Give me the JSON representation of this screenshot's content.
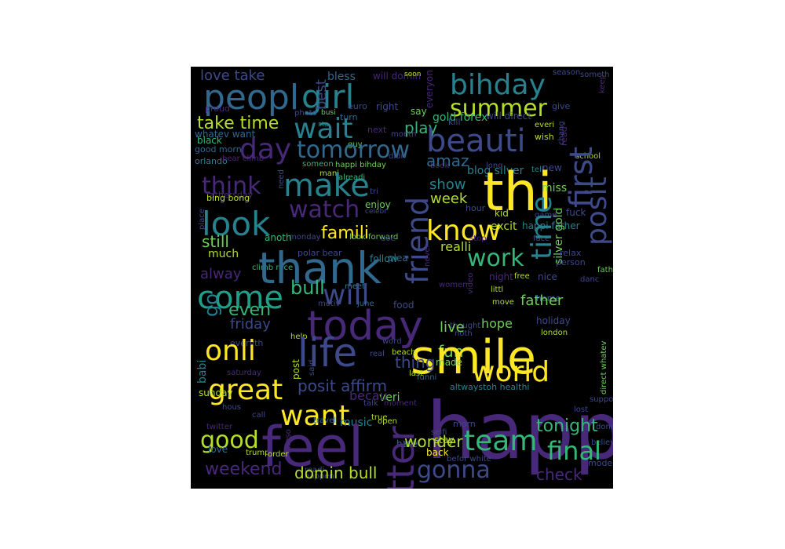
{
  "palette": [
    "#440154",
    "#482878",
    "#3e4989",
    "#31688e",
    "#26828e",
    "#1f9e89",
    "#35b779",
    "#6ece58",
    "#b5de2b",
    "#fde725"
  ],
  "words": [
    {
      "t": "love take",
      "c": "#3e4989"
    },
    {
      "t": "peopl",
      "c": "#31688e"
    },
    {
      "t": "girl",
      "c": "#26828e"
    },
    {
      "t": "bless",
      "c": "#31688e"
    },
    {
      "t": "will domin",
      "c": "#482878"
    },
    {
      "t": "soon",
      "c": "#b5de2b"
    },
    {
      "t": "everyon",
      "c": "#482878"
    },
    {
      "t": "bihday",
      "c": "#26828e"
    },
    {
      "t": "summer",
      "c": "#b5de2b"
    },
    {
      "t": "best",
      "c": "#3e4989"
    },
    {
      "t": "euro",
      "c": "#3e4989"
    },
    {
      "t": "right",
      "c": "#3e4989"
    },
    {
      "t": "sta",
      "c": "#26828e"
    },
    {
      "t": "turn",
      "c": "#31688e"
    },
    {
      "t": "say",
      "c": "#6ece58"
    },
    {
      "t": "season",
      "c": "#3e4989"
    },
    {
      "t": "someth",
      "c": "#3e4989"
    },
    {
      "t": "keep",
      "c": "#482878"
    },
    {
      "t": "take time",
      "c": "#b5de2b"
    },
    {
      "t": "proud",
      "c": "#482878"
    },
    {
      "t": "photo",
      "c": "#3e4989"
    },
    {
      "t": "busi",
      "c": "#6ece58"
    },
    {
      "t": "wait",
      "c": "#26828e"
    },
    {
      "t": "play",
      "c": "#35b779"
    },
    {
      "t": "gold forex",
      "c": "#35b779"
    },
    {
      "t": "kill",
      "c": "#3e4989"
    },
    {
      "t": "will direct",
      "c": "#3e4989"
    },
    {
      "t": "give",
      "c": "#3e4989"
    },
    {
      "t": "whatev want",
      "c": "#31688e"
    },
    {
      "t": "black",
      "c": "#35b779"
    },
    {
      "t": "guy",
      "c": "#6ece58"
    },
    {
      "t": "next",
      "c": "#482878"
    },
    {
      "t": "month",
      "c": "#3e4989"
    },
    {
      "t": "day",
      "c": "#482878"
    },
    {
      "t": "tomorrow",
      "c": "#31688e"
    },
    {
      "t": "beauti",
      "c": "#3e4989"
    },
    {
      "t": "everi",
      "c": "#b5de2b"
    },
    {
      "t": "wish",
      "c": "#b5de2b"
    },
    {
      "t": "read",
      "c": "#482878"
    },
    {
      "t": "chang",
      "c": "#3e4989"
    },
    {
      "t": "school",
      "c": "#b5de2b"
    },
    {
      "t": "good morn",
      "c": "#31688e"
    },
    {
      "t": "first",
      "c": "#3e4989"
    },
    {
      "t": "orlando",
      "c": "#26828e"
    },
    {
      "t": "bear climb",
      "c": "#482878"
    },
    {
      "t": "someon",
      "c": "#35b779"
    },
    {
      "t": "happi bihday",
      "c": "#6ece58"
    },
    {
      "t": "didn",
      "c": "#3e4989"
    },
    {
      "t": "book",
      "c": "#482878"
    },
    {
      "t": "blog silver",
      "c": "#26828e"
    },
    {
      "t": "long",
      "c": "#3e4989"
    },
    {
      "t": "tell",
      "c": "#26828e"
    },
    {
      "t": "mani",
      "c": "#b5de2b"
    },
    {
      "t": "amaz",
      "c": "#31688e"
    },
    {
      "t": "new",
      "c": "#3e4989"
    },
    {
      "t": "think",
      "c": "#482878"
    },
    {
      "t": "make",
      "c": "#26828e"
    },
    {
      "t": "need",
      "c": "#3e4989"
    },
    {
      "t": "alreadi",
      "c": "#35b779"
    },
    {
      "t": "thi",
      "c": "#fde725"
    },
    {
      "t": "show",
      "c": "#26828e"
    },
    {
      "t": "miss",
      "c": "#6ece58"
    },
    {
      "t": "fathersday",
      "c": "#482878"
    },
    {
      "t": "tri",
      "c": "#3e4989"
    },
    {
      "t": "enjoy",
      "c": "#6ece58"
    },
    {
      "t": "place",
      "c": "#3e4989"
    },
    {
      "t": "bing bong",
      "c": "#b5de2b"
    },
    {
      "t": "watch",
      "c": "#482878"
    },
    {
      "t": "week",
      "c": "#b5de2b"
    },
    {
      "t": "hour",
      "c": "#3e4989"
    },
    {
      "t": "kid",
      "c": "#b5de2b"
    },
    {
      "t": "game",
      "c": "#3e4989"
    },
    {
      "t": "fuck",
      "c": "#3e4989"
    },
    {
      "t": "look",
      "c": "#26828e"
    },
    {
      "t": "celebr",
      "c": "#3e4989"
    },
    {
      "t": "know",
      "c": "#fde725"
    },
    {
      "t": "excit",
      "c": "#b5de2b"
    },
    {
      "t": "happi father",
      "c": "#26828e"
    },
    {
      "t": "silver gold",
      "c": "#6ece58"
    },
    {
      "t": "famili",
      "c": "#fde725"
    },
    {
      "t": "monday",
      "c": "#3e4989"
    },
    {
      "t": "look forward",
      "c": "#6ece58"
    },
    {
      "t": "face",
      "c": "#3e4989"
    },
    {
      "t": "anoth",
      "c": "#35b779"
    },
    {
      "t": "still",
      "c": "#6ece58"
    },
    {
      "t": "polar bear",
      "c": "#3e4989"
    },
    {
      "t": "friend",
      "c": "#3e4989"
    },
    {
      "t": "realli",
      "c": "#b5de2b"
    },
    {
      "t": "stop",
      "c": "#482878"
    },
    {
      "t": "relax",
      "c": "#3e4989"
    },
    {
      "t": "much",
      "c": "#b5de2b"
    },
    {
      "t": "work",
      "c": "#35b779"
    },
    {
      "t": "doe",
      "c": "#3e4989"
    },
    {
      "t": "climb race",
      "c": "#35b779"
    },
    {
      "t": "follow",
      "c": "#26828e"
    },
    {
      "t": "person",
      "c": "#3e4989"
    },
    {
      "t": "thank",
      "c": "#31688e"
    },
    {
      "t": "time",
      "c": "#26828e"
    },
    {
      "t": "posit",
      "c": "#3e4989"
    },
    {
      "t": "never",
      "c": "#482878"
    },
    {
      "t": "plea",
      "c": "#31688e"
    },
    {
      "t": "alway",
      "c": "#482878"
    },
    {
      "t": "women",
      "c": "#482878"
    },
    {
      "t": "video",
      "c": "#482878"
    },
    {
      "t": "night",
      "c": "#482878"
    },
    {
      "t": "free",
      "c": "#b5de2b"
    },
    {
      "t": "nice",
      "c": "#3e4989"
    },
    {
      "t": "father day",
      "c": "#6ece58"
    },
    {
      "t": "meet",
      "c": "#26828e"
    },
    {
      "t": "bull",
      "c": "#35b779"
    },
    {
      "t": "littl",
      "c": "#b5de2b"
    },
    {
      "t": "danc",
      "c": "#3e4989"
    },
    {
      "t": "come",
      "c": "#1f9e89"
    },
    {
      "t": "will",
      "c": "#3e4989"
    },
    {
      "t": "motiv",
      "c": "#3e4989"
    },
    {
      "t": "june",
      "c": "#31688e"
    },
    {
      "t": "food",
      "c": "#3e4989"
    },
    {
      "t": "move",
      "c": "#b5de2b"
    },
    {
      "t": "home",
      "c": "#31688e"
    },
    {
      "t": "go",
      "c": "#26828e"
    },
    {
      "t": "even",
      "c": "#35b779"
    },
    {
      "t": "today",
      "c": "#482878"
    },
    {
      "t": "thought",
      "c": "#3e4989"
    },
    {
      "t": "father",
      "c": "#6ece58"
    },
    {
      "t": "friday",
      "c": "#3e4989"
    },
    {
      "t": "hope",
      "c": "#6ece58"
    },
    {
      "t": "holiday",
      "c": "#3e4989"
    },
    {
      "t": "everyth",
      "c": "#3e4989"
    },
    {
      "t": "help",
      "c": "#b5de2b"
    },
    {
      "t": "noth",
      "c": "#3e4989"
    },
    {
      "t": "live",
      "c": "#6ece58"
    },
    {
      "t": "london",
      "c": "#b5de2b"
    },
    {
      "t": "word",
      "c": "#3e4989"
    },
    {
      "t": "life",
      "c": "#3e4989"
    },
    {
      "t": "fun",
      "c": "#6ece58"
    },
    {
      "t": "smile",
      "c": "#fde725"
    },
    {
      "t": "beach",
      "c": "#b5de2b"
    },
    {
      "t": "onli",
      "c": "#fde725"
    },
    {
      "t": "real",
      "c": "#3e4989"
    },
    {
      "t": "made",
      "c": "#6ece58"
    },
    {
      "t": "babi",
      "c": "#26828e"
    },
    {
      "t": "post",
      "c": "#b5de2b"
    },
    {
      "t": "thing",
      "c": "#3e4989"
    },
    {
      "t": "world",
      "c": "#fde725"
    },
    {
      "t": "saturday",
      "c": "#482878"
    },
    {
      "t": "said",
      "c": "#3e4989"
    },
    {
      "t": "last",
      "c": "#b5de2b"
    },
    {
      "t": "funni",
      "c": "#31688e"
    },
    {
      "t": "great",
      "c": "#fde725"
    },
    {
      "t": "posit affirm",
      "c": "#3e4989"
    },
    {
      "t": "altwaystoh healthi",
      "c": "#26828e"
    },
    {
      "t": "suppo",
      "c": "#3e4989"
    },
    {
      "t": "veri",
      "c": "#6ece58"
    },
    {
      "t": "becau",
      "c": "#482878"
    },
    {
      "t": "sunday",
      "c": "#b5de2b"
    },
    {
      "t": "want",
      "c": "#fde725"
    },
    {
      "t": "hous",
      "c": "#3e4989"
    },
    {
      "t": "talk",
      "c": "#3e4989"
    },
    {
      "t": "moment",
      "c": "#482878"
    },
    {
      "t": "direct whatev",
      "c": "#6ece58"
    },
    {
      "t": "happi",
      "c": "#482878"
    },
    {
      "t": "lost",
      "c": "#3e4989"
    },
    {
      "t": "call",
      "c": "#3e4989"
    },
    {
      "t": "true",
      "c": "#b5de2b"
    },
    {
      "t": "twitter",
      "c": "#482878"
    },
    {
      "t": "good",
      "c": "#b5de2b"
    },
    {
      "t": "travel",
      "c": "#31688e"
    },
    {
      "t": "music",
      "c": "#26828e"
    },
    {
      "t": "open",
      "c": "#b5de2b"
    },
    {
      "t": "morn",
      "c": "#3e4989"
    },
    {
      "t": "tonight",
      "c": "#35b779"
    },
    {
      "t": "done",
      "c": "#3e4989"
    },
    {
      "t": "aweso",
      "c": "#482878"
    },
    {
      "t": "selfi",
      "c": "#3e4989"
    },
    {
      "t": "believ",
      "c": "#3e4989"
    },
    {
      "t": "hate",
      "c": "#31688e"
    },
    {
      "t": "stay",
      "c": "#b5de2b"
    },
    {
      "t": "love",
      "c": "#31688e"
    },
    {
      "t": "trump",
      "c": "#b5de2b"
    },
    {
      "t": "feel",
      "c": "#482878"
    },
    {
      "t": "year",
      "c": "#31688e"
    },
    {
      "t": "wonder",
      "c": "#b5de2b"
    },
    {
      "t": "team",
      "c": "#35b779"
    },
    {
      "t": "final",
      "c": "#35b779"
    },
    {
      "t": "order",
      "c": "#b5de2b"
    },
    {
      "t": "back",
      "c": "#fde725"
    },
    {
      "t": "weekend",
      "c": "#482878"
    },
    {
      "t": "befor white",
      "c": "#3e4989"
    },
    {
      "t": "better",
      "c": "#482878"
    },
    {
      "t": "gonna",
      "c": "#3e4989"
    },
    {
      "t": "model love",
      "c": "#3e4989"
    },
    {
      "t": "readi",
      "c": "#3e4989"
    },
    {
      "t": "happen",
      "c": "#3e4989"
    },
    {
      "t": "domin bull",
      "c": "#b5de2b"
    },
    {
      "t": "check",
      "c": "#482878"
    }
  ]
}
